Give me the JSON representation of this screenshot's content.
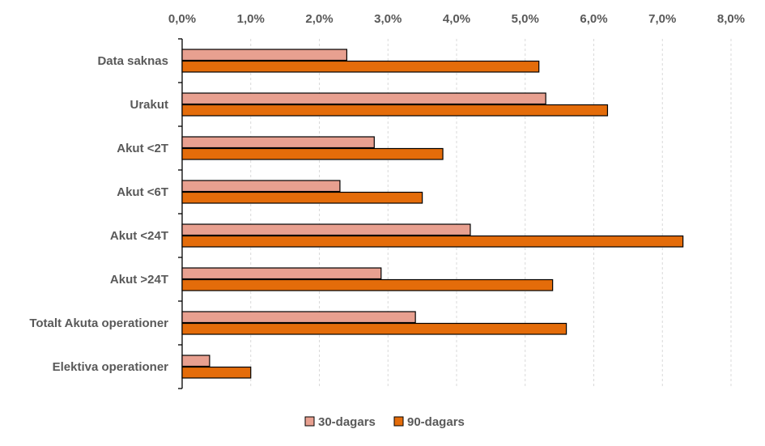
{
  "chart_data": {
    "type": "bar",
    "orientation": "horizontal",
    "title": "",
    "xlabel": "",
    "ylabel": "",
    "xlim": [
      0,
      8
    ],
    "x_ticks": [
      "0,0%",
      "1,0%",
      "2,0%",
      "3,0%",
      "4,0%",
      "5,0%",
      "6,0%",
      "7,0%",
      "8,0%"
    ],
    "x_tick_values": [
      0,
      1,
      2,
      3,
      4,
      5,
      6,
      7,
      8
    ],
    "x_axis_position": "top",
    "grid": "vertical-dashed",
    "legend_position": "bottom",
    "categories": [
      "Data saknas",
      "Urakut",
      "Akut <2T",
      "Akut <6T",
      "Akut <24T",
      "Akut >24T",
      "Totalt Akuta operationer",
      "Elektiva operationer"
    ],
    "series": [
      {
        "name": "30-dagars",
        "color": "#E8A090",
        "values": [
          2.4,
          5.3,
          2.8,
          2.3,
          4.2,
          2.9,
          3.4,
          0.4
        ]
      },
      {
        "name": "90-dagars",
        "color": "#E46C0A",
        "values": [
          5.2,
          6.2,
          3.8,
          3.5,
          7.3,
          5.4,
          5.6,
          1.0
        ]
      }
    ]
  }
}
